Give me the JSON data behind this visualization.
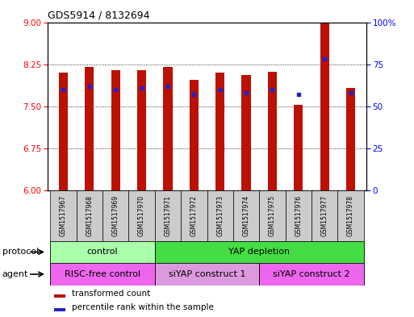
{
  "title": "GDS5914 / 8132694",
  "samples": [
    "GSM1517967",
    "GSM1517968",
    "GSM1517969",
    "GSM1517970",
    "GSM1517971",
    "GSM1517972",
    "GSM1517973",
    "GSM1517974",
    "GSM1517975",
    "GSM1517976",
    "GSM1517977",
    "GSM1517978"
  ],
  "transformed_counts": [
    8.1,
    8.2,
    8.15,
    8.15,
    8.2,
    7.97,
    8.1,
    8.05,
    8.12,
    7.52,
    9.0,
    7.82
  ],
  "percentile_ranks": [
    60,
    62,
    60,
    61,
    62,
    57,
    60,
    58,
    60,
    57,
    78,
    58
  ],
  "ylim_left": [
    6,
    9
  ],
  "ylim_right": [
    0,
    100
  ],
  "yticks_left": [
    6,
    6.75,
    7.5,
    8.25,
    9
  ],
  "yticks_right": [
    0,
    25,
    50,
    75,
    100
  ],
  "bar_color": "#bb1100",
  "dot_color": "#2222cc",
  "protocol_groups": [
    {
      "label": "control",
      "start": 0,
      "end": 4,
      "color": "#aaffaa"
    },
    {
      "label": "YAP depletion",
      "start": 4,
      "end": 12,
      "color": "#44dd44"
    }
  ],
  "agent_groups": [
    {
      "label": "RISC-free control",
      "start": 0,
      "end": 4,
      "color": "#ee66ee"
    },
    {
      "label": "siYAP construct 1",
      "start": 4,
      "end": 8,
      "color": "#dd99dd"
    },
    {
      "label": "siYAP construct 2",
      "start": 8,
      "end": 12,
      "color": "#ee66ee"
    }
  ],
  "protocol_label": "protocol",
  "agent_label": "agent",
  "legend_items": [
    {
      "label": "transformed count",
      "color": "#bb1100"
    },
    {
      "label": "percentile rank within the sample",
      "color": "#2222cc"
    }
  ],
  "sample_bg_color": "#cccccc",
  "bar_width": 0.35
}
